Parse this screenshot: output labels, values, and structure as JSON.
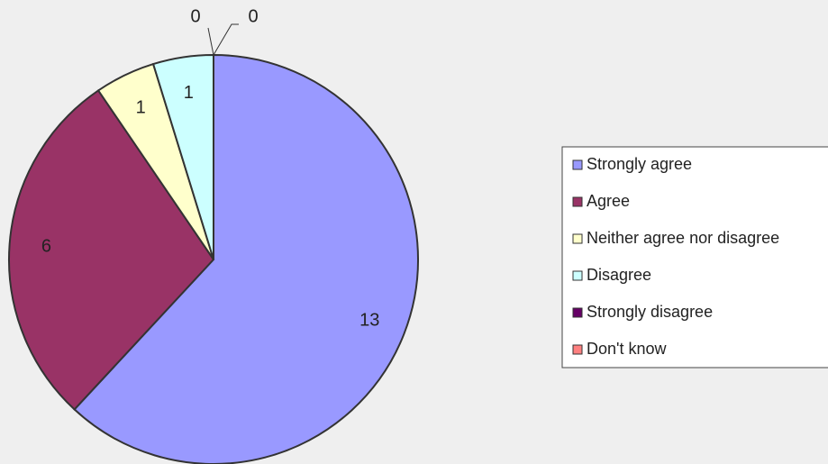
{
  "chart_data": {
    "type": "pie",
    "categories": [
      "Strongly agree",
      "Agree",
      "Neither agree nor disagree",
      "Disagree",
      "Strongly disagree",
      "Don't know"
    ],
    "values": [
      13,
      6,
      1,
      1,
      0,
      0
    ],
    "colors": [
      "#9999ff",
      "#993366",
      "#ffffcc",
      "#ccffff",
      "#660066",
      "#ff8080"
    ],
    "legend": "right"
  }
}
